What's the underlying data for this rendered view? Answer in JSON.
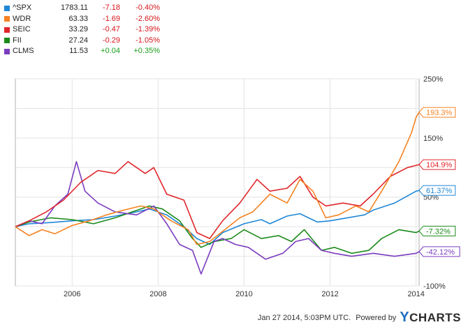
{
  "legend": [
    {
      "symbol": "^SPX",
      "price": "1783.11",
      "change": "-7.18",
      "percent": "-0.40%",
      "color": "#1f87d6",
      "change_color": "#d9151b"
    },
    {
      "symbol": "WDR",
      "price": "63.33",
      "change": "-1.69",
      "percent": "-2.60%",
      "color": "#f58220",
      "change_color": "#d9151b"
    },
    {
      "symbol": "SEIC",
      "price": "33.29",
      "change": "-0.47",
      "percent": "-1.39%",
      "color": "#e0262b",
      "change_color": "#d9151b"
    },
    {
      "symbol": "FII",
      "price": "27.24",
      "change": "-0.29",
      "percent": "-1.05%",
      "color": "#1b8a1b",
      "change_color": "#d9151b"
    },
    {
      "symbol": "CLMS",
      "price": "11.53",
      "change": "+0.04",
      "percent": "+0.35%",
      "color": "#7a3cbf",
      "change_color": "#1a9b1a"
    }
  ],
  "footer": {
    "timestamp": "Jan 27 2014, 5:03PM UTC.",
    "powered_by": "Powered by",
    "logo_y": "Y",
    "logo_rest": "CHARTS"
  },
  "chart_data": {
    "type": "line",
    "x_ticks": [
      "2006",
      "2008",
      "2010",
      "2012",
      "2014"
    ],
    "y_ticks": [
      "250%",
      "150%",
      "50%",
      "-100%"
    ],
    "ylim": [
      -100,
      250
    ],
    "xlim": [
      2004.68,
      2014.07
    ],
    "grid": true,
    "end_labels": [
      "193.3%",
      "104.9%",
      "61.37%",
      "-7.32%",
      "-42.12%"
    ],
    "series": [
      {
        "name": "^SPX",
        "color": "#1f87d6",
        "end_label": "61.37%",
        "x": [
          2004.68,
          2005.0,
          2005.5,
          2006.0,
          2006.5,
          2007.0,
          2007.5,
          2007.8,
          2008.2,
          2008.6,
          2008.9,
          2009.2,
          2009.5,
          2010.0,
          2010.4,
          2010.6,
          2011.0,
          2011.3,
          2011.7,
          2012.0,
          2012.4,
          2012.8,
          2013.0,
          2013.5,
          2014.0,
          2014.07
        ],
        "y": [
          0,
          5,
          7,
          10,
          12,
          18,
          25,
          30,
          20,
          0,
          -20,
          -30,
          -10,
          5,
          12,
          5,
          18,
          22,
          8,
          10,
          15,
          20,
          28,
          40,
          60,
          61.37
        ]
      },
      {
        "name": "WDR",
        "color": "#f58220",
        "end_label": "193.3%",
        "x": [
          2004.68,
          2005.0,
          2005.3,
          2005.6,
          2006.0,
          2006.4,
          2006.8,
          2007.2,
          2007.6,
          2007.9,
          2008.3,
          2008.7,
          2008.9,
          2009.2,
          2009.5,
          2009.9,
          2010.2,
          2010.6,
          2011.0,
          2011.3,
          2011.6,
          2011.9,
          2012.2,
          2012.6,
          2012.9,
          2013.2,
          2013.6,
          2013.9,
          2014.0,
          2014.07
        ],
        "y": [
          0,
          -15,
          -5,
          -12,
          2,
          10,
          20,
          28,
          35,
          30,
          10,
          -5,
          -30,
          -25,
          -8,
          15,
          25,
          55,
          40,
          80,
          60,
          15,
          20,
          35,
          25,
          60,
          110,
          160,
          185,
          193.3
        ]
      },
      {
        "name": "SEIC",
        "color": "#e0262b",
        "end_label": "104.9%",
        "x": [
          2004.68,
          2005.0,
          2005.4,
          2005.8,
          2006.2,
          2006.6,
          2007.0,
          2007.3,
          2007.7,
          2007.9,
          2008.2,
          2008.6,
          2008.9,
          2009.2,
          2009.5,
          2009.9,
          2010.3,
          2010.6,
          2011.0,
          2011.3,
          2011.6,
          2011.9,
          2012.3,
          2012.7,
          2013.0,
          2013.4,
          2013.8,
          2014.07
        ],
        "y": [
          0,
          10,
          25,
          45,
          75,
          95,
          90,
          110,
          90,
          100,
          55,
          45,
          -10,
          -20,
          10,
          40,
          80,
          60,
          65,
          85,
          50,
          35,
          40,
          35,
          55,
          85,
          100,
          104.9
        ]
      },
      {
        "name": "FII",
        "color": "#1b8a1b",
        "end_label": "-7.32%",
        "x": [
          2004.68,
          2005.0,
          2005.5,
          2006.0,
          2006.5,
          2007.0,
          2007.4,
          2007.8,
          2008.1,
          2008.5,
          2008.8,
          2009.0,
          2009.3,
          2009.7,
          2010.0,
          2010.4,
          2010.8,
          2011.1,
          2011.4,
          2011.8,
          2012.1,
          2012.5,
          2012.9,
          2013.2,
          2013.6,
          2014.0,
          2014.07
        ],
        "y": [
          0,
          8,
          15,
          12,
          5,
          15,
          25,
          35,
          30,
          10,
          -20,
          -35,
          -25,
          -20,
          -5,
          -20,
          -15,
          -25,
          -5,
          -40,
          -35,
          -45,
          -40,
          -20,
          -5,
          -10,
          -7.32
        ]
      },
      {
        "name": "CLMS",
        "color": "#7a3cbf",
        "end_label": "-42.12%",
        "x": [
          2004.68,
          2005.0,
          2005.3,
          2005.6,
          2005.9,
          2006.1,
          2006.3,
          2006.6,
          2007.0,
          2007.5,
          2007.9,
          2008.2,
          2008.5,
          2008.8,
          2009.0,
          2009.3,
          2009.5,
          2009.8,
          2010.1,
          2010.5,
          2010.9,
          2011.2,
          2011.5,
          2011.8,
          2012.1,
          2012.5,
          2013.0,
          2013.5,
          2014.0,
          2014.07
        ],
        "y": [
          0,
          10,
          5,
          35,
          55,
          110,
          60,
          40,
          25,
          20,
          35,
          5,
          -30,
          -40,
          -80,
          -25,
          -20,
          -30,
          -35,
          -55,
          -45,
          -25,
          -20,
          -40,
          -45,
          -50,
          -45,
          -50,
          -45,
          -42.12
        ]
      }
    ]
  }
}
